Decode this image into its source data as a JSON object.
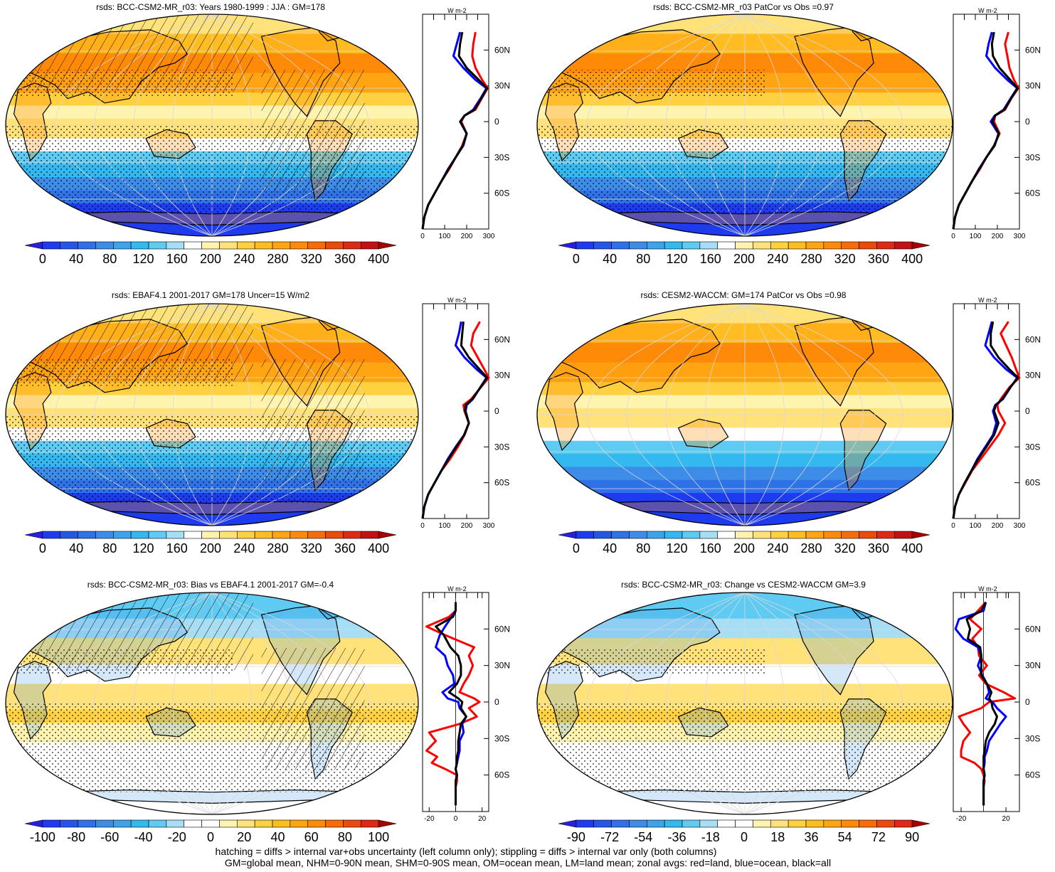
{
  "footer": {
    "line1": "hatching = diffs > internal var+obs uncertainty (left column only); stippling = diffs > internal var only (both columns)",
    "line2": "GM=global mean, NHM=0-90N mean, SHM=0-90S mean, OM=ocean mean, LM=land mean; zonal avgs: red=land, blue=ocean, black=all"
  },
  "colors": {
    "land": "#ff0000",
    "ocean": "#0000ff",
    "all": "#000000",
    "abs_scale": [
      "#2a1fe0",
      "#1e3bf0",
      "#2457e6",
      "#2f72e8",
      "#3c8ce8",
      "#3da4ec",
      "#33b8f0",
      "#5fcbf2",
      "#a6def5",
      "#ffffff",
      "#fff3b0",
      "#ffe27a",
      "#ffd040",
      "#ffbd21",
      "#ffa514",
      "#ff8a0a",
      "#f56d0a",
      "#ea4a0a",
      "#de2a14",
      "#c40f14",
      "#a80000"
    ],
    "diff_scale": [
      "#2a1fe0",
      "#1e3bf0",
      "#2457e6",
      "#2f72e8",
      "#3c8ce8",
      "#3da4ec",
      "#33b8f0",
      "#5fcbf2",
      "#a6def5",
      "#ffffff",
      "#ffffff",
      "#fff3b0",
      "#ffe27a",
      "#ffd040",
      "#ffbd21",
      "#ffa514",
      "#ff8a0a",
      "#f56d0a",
      "#ea4a0a",
      "#de2a14",
      "#a80000"
    ]
  },
  "chart_data": [
    {
      "type": "heatmap",
      "title": "rsds: BCC-CSM2-MR_r03: Years 1980-1999 : JJA : GM=178",
      "field": "absolute",
      "hatching": true,
      "stippling": true,
      "colorbar_ticks": [
        "0",
        "40",
        "80",
        "120",
        "160",
        "200",
        "240",
        "280",
        "320",
        "360",
        "400"
      ],
      "profile": {
        "unit": "W m-2",
        "xlim": [
          0,
          300
        ],
        "xticks": [
          "0",
          "100",
          "200",
          "300"
        ],
        "ylabels": [
          "60N",
          "30N",
          "0",
          "30S",
          "60S"
        ],
        "lat": [
          75,
          65,
          55,
          45,
          35,
          28,
          20,
          10,
          5,
          0,
          -10,
          -20,
          -30,
          -40,
          -50,
          -60,
          -70,
          -80,
          -90
        ],
        "land": [
          240,
          230,
          225,
          240,
          270,
          295,
          270,
          240,
          190,
          175,
          200,
          180,
          150,
          120,
          85,
          55,
          25,
          8,
          0
        ],
        "ocean": [
          170,
          155,
          140,
          185,
          240,
          290,
          265,
          230,
          190,
          170,
          200,
          185,
          150,
          115,
          85,
          55,
          25,
          8,
          0
        ],
        "all": [
          180,
          170,
          165,
          200,
          255,
          292,
          268,
          235,
          190,
          172,
          200,
          183,
          150,
          117,
          85,
          55,
          25,
          8,
          0
        ]
      }
    },
    {
      "type": "heatmap",
      "title": "rsds: BCC-CSM2-MR_r03 PatCor vs Obs =0.97",
      "field": "absolute",
      "hatching": false,
      "stippling": true,
      "colorbar_ticks": [
        "0",
        "40",
        "80",
        "120",
        "160",
        "200",
        "240",
        "280",
        "320",
        "360",
        "400"
      ],
      "profile": {
        "unit": "W m-2",
        "xlim": [
          0,
          300
        ],
        "xticks": [
          "0",
          "100",
          "200",
          "300"
        ],
        "ylabels": [
          "60N",
          "30N",
          "0",
          "30S",
          "60S"
        ],
        "lat": [
          75,
          65,
          55,
          45,
          35,
          28,
          20,
          10,
          5,
          0,
          -10,
          -20,
          -30,
          -40,
          -50,
          -60,
          -70,
          -80,
          -90
        ],
        "land": [
          250,
          235,
          245,
          255,
          275,
          295,
          265,
          235,
          190,
          185,
          210,
          185,
          150,
          120,
          85,
          55,
          25,
          8,
          0
        ],
        "ocean": [
          175,
          160,
          150,
          190,
          245,
          290,
          262,
          228,
          188,
          170,
          205,
          188,
          150,
          115,
          85,
          55,
          25,
          8,
          0
        ],
        "all": [
          185,
          175,
          180,
          210,
          258,
          292,
          264,
          232,
          189,
          178,
          207,
          186,
          150,
          117,
          85,
          55,
          25,
          8,
          0
        ]
      }
    },
    {
      "type": "heatmap",
      "title": "rsds: EBAF4.1 2001-2017 GM=178 Uncer=15 W/m2",
      "field": "absolute",
      "hatching": true,
      "stippling": true,
      "colorbar_ticks": [
        "0",
        "40",
        "80",
        "120",
        "160",
        "200",
        "240",
        "280",
        "320",
        "360",
        "400"
      ],
      "profile": {
        "unit": "W m-2",
        "xlim": [
          0,
          300
        ],
        "xticks": [
          "0",
          "100",
          "200",
          "300"
        ],
        "ylabels": [
          "60N",
          "30N",
          "0",
          "30S",
          "60S"
        ],
        "lat": [
          75,
          65,
          55,
          45,
          35,
          28,
          20,
          10,
          5,
          0,
          -10,
          -20,
          -30,
          -40,
          -50,
          -60,
          -70,
          -80,
          -90
        ],
        "land": [
          260,
          230,
          220,
          250,
          280,
          300,
          265,
          220,
          185,
          190,
          210,
          190,
          160,
          125,
          85,
          55,
          25,
          8,
          0
        ],
        "ocean": [
          175,
          165,
          150,
          190,
          245,
          290,
          262,
          228,
          200,
          195,
          210,
          188,
          150,
          115,
          85,
          55,
          25,
          8,
          0
        ],
        "all": [
          185,
          180,
          175,
          210,
          258,
          293,
          263,
          225,
          195,
          193,
          210,
          189,
          153,
          118,
          85,
          55,
          25,
          8,
          0
        ]
      }
    },
    {
      "type": "heatmap",
      "title": "rsds: CESM2-WACCM: GM=174 PatCor vs Obs =0.98",
      "field": "absolute",
      "hatching": false,
      "stippling": false,
      "colorbar_ticks": [
        "0",
        "40",
        "80",
        "120",
        "160",
        "200",
        "240",
        "280",
        "320",
        "360",
        "400"
      ],
      "profile": {
        "unit": "W m-2",
        "xlim": [
          0,
          300
        ],
        "xticks": [
          "0",
          "100",
          "200",
          "300"
        ],
        "ylabels": [
          "60N",
          "30N",
          "0",
          "30S",
          "60S"
        ],
        "lat": [
          75,
          65,
          55,
          45,
          35,
          28,
          20,
          10,
          5,
          0,
          -10,
          -20,
          -30,
          -40,
          -50,
          -60,
          -70,
          -80,
          -90
        ],
        "land": [
          250,
          215,
          240,
          265,
          285,
          300,
          255,
          215,
          200,
          205,
          235,
          205,
          165,
          125,
          85,
          55,
          25,
          8,
          0
        ],
        "ocean": [
          175,
          160,
          145,
          185,
          240,
          290,
          260,
          225,
          190,
          180,
          195,
          180,
          145,
          110,
          82,
          52,
          25,
          8,
          0
        ],
        "all": [
          180,
          170,
          170,
          205,
          255,
          293,
          259,
          222,
          193,
          185,
          205,
          185,
          150,
          114,
          83,
          53,
          25,
          8,
          0
        ]
      }
    },
    {
      "type": "heatmap",
      "title": "rsds: BCC-CSM2-MR_r03: Bias vs EBAF4.1 2001-2017 GM=-0.4",
      "field": "difference",
      "hatching": true,
      "stippling": true,
      "colorbar_ticks": [
        "-100",
        "-80",
        "-60",
        "-40",
        "-20",
        "0",
        "20",
        "40",
        "60",
        "80",
        "100"
      ],
      "profile": {
        "unit": "W m-2",
        "xlim": [
          -25,
          25
        ],
        "xticks": [
          "-20",
          "0",
          "20"
        ],
        "ylabels": [
          "60N",
          "30N",
          "0",
          "30S",
          "60S"
        ],
        "lat": [
          82,
          75,
          70,
          62,
          55,
          45,
          38,
          30,
          22,
          15,
          8,
          3,
          0,
          -5,
          -12,
          -18,
          -25,
          -32,
          -40,
          -45,
          -50,
          -55,
          -60,
          -65,
          -70,
          -78,
          -85
        ],
        "land": [
          0,
          0,
          -5,
          -22,
          -8,
          14,
          10,
          13,
          10,
          6,
          3,
          14,
          18,
          10,
          16,
          3,
          -20,
          -15,
          -22,
          -14,
          -18,
          -8,
          1,
          1,
          0,
          0,
          0
        ],
        "ocean": [
          0,
          0,
          -3,
          -8,
          -12,
          -15,
          -8,
          -6,
          -2,
          -1,
          -10,
          -6,
          2,
          3,
          8,
          5,
          6,
          3,
          3,
          2,
          1,
          0,
          1,
          0,
          0,
          0,
          0
        ],
        "all": [
          0,
          0,
          -2,
          -15,
          -9,
          -4,
          2,
          4,
          4,
          1,
          -5,
          2,
          5,
          4,
          8,
          4,
          3,
          2,
          2,
          1,
          1,
          0,
          1,
          0,
          0,
          0,
          0
        ]
      }
    },
    {
      "type": "heatmap",
      "title": "rsds: BCC-CSM2-MR_r03: Change vs CESM2-WACCM GM=3.9",
      "field": "difference",
      "hatching": false,
      "stippling": true,
      "colorbar_ticks": [
        "-90",
        "-72",
        "-54",
        "-36",
        "-18",
        "0",
        "18",
        "36",
        "54",
        "72",
        "90"
      ],
      "profile": {
        "unit": "W m-2",
        "xlim": [
          -27,
          32
        ],
        "xticks": [
          "-20",
          "20"
        ],
        "ylabels": [
          "60N",
          "30N",
          "0",
          "30S",
          "60S"
        ],
        "lat": [
          82,
          75,
          68,
          60,
          52,
          45,
          38,
          30,
          22,
          15,
          8,
          3,
          0,
          -5,
          -12,
          -18,
          -25,
          -32,
          -40,
          -45,
          -50,
          -55,
          -60,
          -65,
          -70,
          -78,
          -85
        ],
        "land": [
          2,
          -5,
          -12,
          -2,
          -10,
          -5,
          -4,
          3,
          -4,
          2,
          18,
          28,
          5,
          -2,
          -22,
          -18,
          -12,
          -18,
          -20,
          -20,
          -8,
          -2,
          0,
          1,
          0,
          0,
          0
        ],
        "ocean": [
          2,
          0,
          -22,
          -25,
          -18,
          -5,
          -2,
          -5,
          -1,
          3,
          5,
          2,
          8,
          12,
          20,
          15,
          10,
          5,
          3,
          1,
          1,
          0,
          1,
          0,
          0,
          0,
          0
        ],
        "all": [
          2,
          -2,
          -15,
          -12,
          -14,
          -3,
          -2,
          -2,
          -2,
          3,
          7,
          5,
          7,
          8,
          12,
          10,
          5,
          2,
          1,
          0,
          0,
          0,
          1,
          0,
          0,
          0,
          0
        ]
      }
    }
  ]
}
